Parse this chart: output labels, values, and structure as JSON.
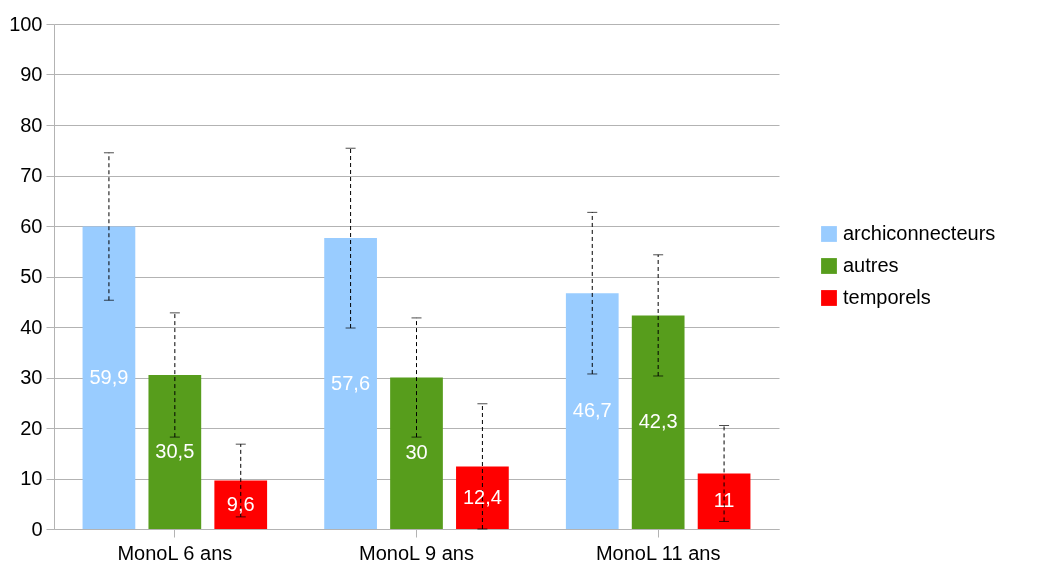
{
  "chart_data": {
    "type": "bar",
    "categories": [
      "MonoL 6 ans",
      "MonoL 9 ans",
      "MonoL 11 ans"
    ],
    "series": [
      {
        "name": "archiconnecteurs",
        "color": "#99ccff",
        "values": [
          59.9,
          57.6,
          46.7
        ],
        "errors": [
          14.6,
          17.8,
          16
        ],
        "value_labels": [
          "59,9",
          "57,6",
          "46,7"
        ]
      },
      {
        "name": "autres",
        "color": "#579d1c",
        "values": [
          30.5,
          30,
          42.3
        ],
        "errors": [
          12.3,
          11.8,
          12
        ],
        "value_labels": [
          "30,5",
          "30",
          "42,3"
        ]
      },
      {
        "name": "temporels",
        "color": "#ff0000",
        "values": [
          9.6,
          12.4,
          11
        ],
        "errors": [
          7.2,
          12.4,
          9.5
        ],
        "value_labels": [
          "9,6",
          "12,4",
          "11"
        ]
      }
    ],
    "ylim": [
      0,
      100
    ],
    "yticks": [
      0,
      10,
      20,
      30,
      40,
      50,
      60,
      70,
      80,
      90,
      100
    ],
    "grid": "y",
    "legend": "right"
  }
}
